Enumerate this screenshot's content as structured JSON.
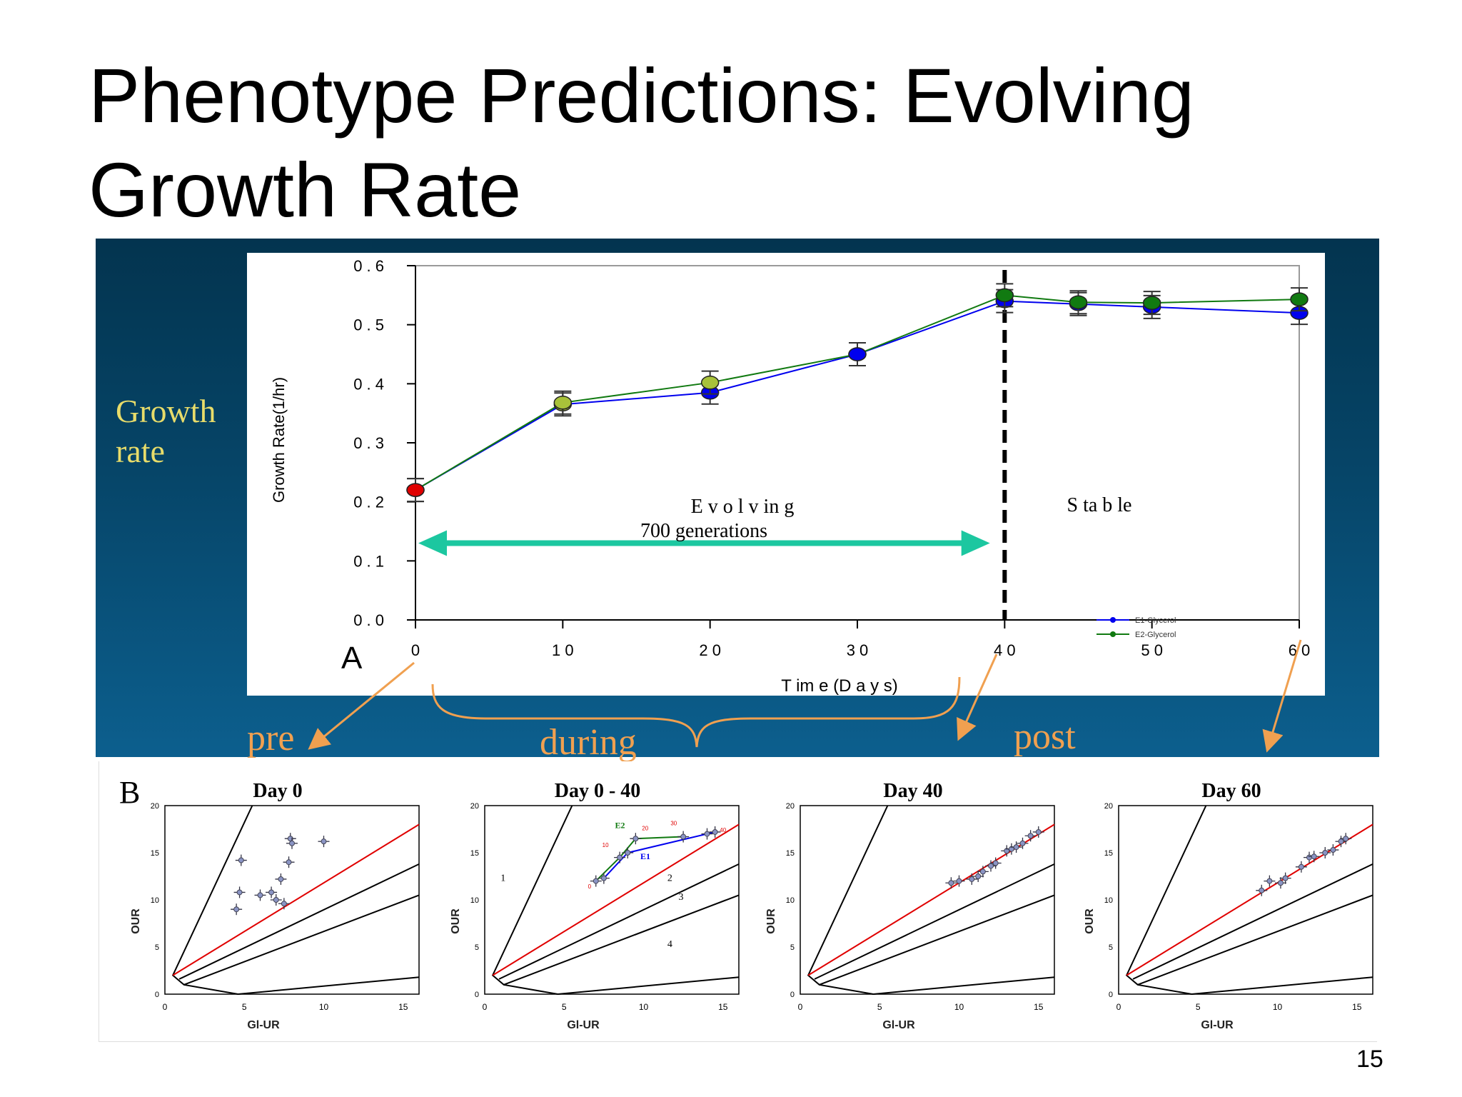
{
  "slide": {
    "title": "Phenotype Predictions: Evolving Growth Rate",
    "side_label": [
      "Growth",
      "rate"
    ],
    "page_number": "15",
    "phase_labels": {
      "pre": "pre",
      "during": "during",
      "post": "post"
    }
  },
  "chart_data": [
    {
      "type": "line",
      "panel_label": "A",
      "title": "",
      "xlabel": "T im e (D a y s)",
      "ylabel": "Growth Rate(1/hr)",
      "xlim": [
        0,
        60
      ],
      "ylim": [
        0,
        0.6
      ],
      "x_ticks": [
        "0",
        "1 0",
        "2 0",
        "3 0",
        "4 0",
        "5 0",
        "6 0"
      ],
      "y_ticks": [
        "0 . 0",
        "0 . 1",
        "0 . 2",
        "0 . 3",
        "0 . 4",
        "0 . 5",
        "0 . 6"
      ],
      "x_tick_values": [
        0,
        10,
        20,
        30,
        40,
        50,
        60
      ],
      "y_tick_values": [
        0,
        0.1,
        0.2,
        0.3,
        0.4,
        0.5,
        0.6
      ],
      "series": [
        {
          "name": "E1-Glycerol",
          "color": "#0000ee",
          "x": [
            0,
            10,
            20,
            30,
            40,
            45,
            50,
            60
          ],
          "y": [
            0.22,
            0.365,
            0.385,
            0.45,
            0.54,
            0.535,
            0.53,
            0.52
          ],
          "marker_colors": [
            "#e00000",
            "#a8c23a",
            "#0000ee",
            "#0000ee",
            "#0000ee",
            "#0000ee",
            "#0000ee",
            "#0000ee"
          ]
        },
        {
          "name": "E2-Glycerol",
          "color": "#117a11",
          "x": [
            0,
            10,
            20,
            30,
            40,
            45,
            50,
            60
          ],
          "y": [
            0.22,
            0.368,
            0.402,
            0.45,
            0.55,
            0.538,
            0.537,
            0.543
          ],
          "marker_colors": [
            "#e00000",
            "#a8c23a",
            "#a8c23a",
            "#0000ee",
            "#117a11",
            "#117a11",
            "#117a11",
            "#117a11"
          ]
        }
      ],
      "annotations": {
        "evolving": "E v o l v in g",
        "generations": "700 generations",
        "stable": "S ta b le",
        "arrow_range": [
          0,
          39
        ],
        "arrow_y": 0.13,
        "divider_x": 40,
        "arrow_color": "#1cc7a0"
      },
      "legend": [
        "E1-Glycerol",
        "E2-Glycerol"
      ],
      "legend_position": "bottom-right",
      "grid": false
    },
    {
      "type": "scatter",
      "panel_label": "B",
      "xlabel": "Gl-UR",
      "ylabel": "OUR",
      "xlim": [
        0,
        16
      ],
      "ylim": [
        0,
        20
      ],
      "x_ticks": [
        "0",
        "5",
        "10",
        "15"
      ],
      "y_ticks": [
        "0",
        "5",
        "10",
        "15",
        "20"
      ],
      "phase_lines": {
        "color": "#000000",
        "optimal_color": "#e00000"
      },
      "panels": [
        {
          "title": "Day 0",
          "x": [
            4.5,
            4.7,
            4.8,
            6.0,
            6.7,
            7.0,
            7.3,
            7.5,
            7.8,
            7.9,
            8.0,
            10.0
          ],
          "y": [
            9.0,
            10.8,
            14.2,
            10.5,
            10.8,
            10.0,
            12.2,
            9.6,
            14.0,
            16.5,
            16.0,
            16.2
          ]
        },
        {
          "title": "Day 0 - 40",
          "x": [
            7.0,
            7.5,
            8.5,
            9.0,
            9.5,
            12.5,
            14.0,
            14.5
          ],
          "y": [
            12.0,
            12.3,
            14.5,
            15.0,
            16.5,
            16.7,
            17.0,
            17.2
          ],
          "labels": {
            "regions": [
              "1",
              "2",
              "3",
              "4"
            ],
            "e1": "E1",
            "e2": "E2",
            "points": [
              "0",
              "10",
              "20",
              "30",
              "40"
            ]
          }
        },
        {
          "title": "Day 40",
          "x": [
            9.5,
            10.0,
            10.8,
            11.2,
            11.5,
            12.0,
            12.3,
            13.0,
            13.3,
            13.6,
            14.0,
            14.5,
            15.0
          ],
          "y": [
            11.8,
            12.0,
            12.2,
            12.5,
            13.0,
            13.6,
            13.9,
            15.2,
            15.4,
            15.6,
            16.0,
            16.8,
            17.2
          ]
        },
        {
          "title": "Day 60",
          "x": [
            9.0,
            9.5,
            10.2,
            10.5,
            11.5,
            12.0,
            12.3,
            13.0,
            13.5,
            14.0,
            14.3
          ],
          "y": [
            11.0,
            12.0,
            11.8,
            12.3,
            13.5,
            14.5,
            14.6,
            15.0,
            15.3,
            16.2,
            16.5
          ]
        }
      ]
    }
  ]
}
